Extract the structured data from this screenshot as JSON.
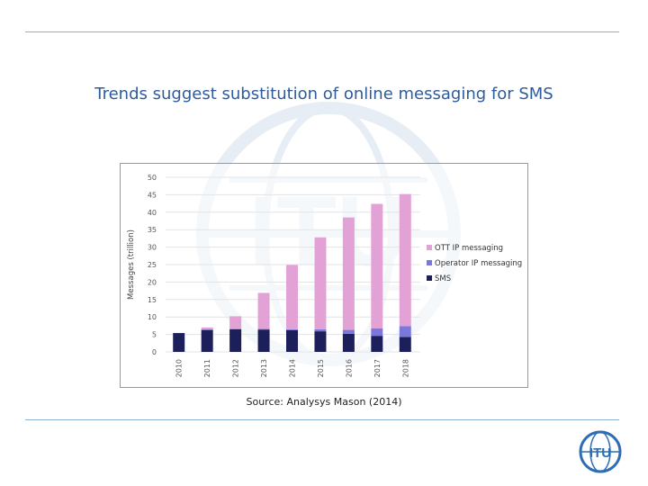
{
  "slide": {
    "title": "Trends suggest substitution of online messaging for SMS",
    "source": "Source: Analysys Mason (2014)"
  },
  "chart_data": {
    "type": "bar",
    "stacked": true,
    "categories": [
      "2010",
      "2011",
      "2012",
      "2013",
      "2014",
      "2015",
      "2016",
      "2017",
      "2018"
    ],
    "series": [
      {
        "name": "SMS",
        "color": "#1c1f5a",
        "values": [
          5.4,
          6.3,
          6.5,
          6.4,
          6.2,
          5.9,
          5.2,
          4.6,
          4.3
        ]
      },
      {
        "name": "Operator IP messaging",
        "color": "#7b78dd",
        "values": [
          0,
          0.1,
          0.1,
          0.2,
          0.3,
          0.6,
          1.1,
          2.1,
          3.1
        ]
      },
      {
        "name": "OTT IP messaging",
        "color": "#e3a2d6",
        "values": [
          0,
          0.6,
          3.6,
          10.3,
          18.4,
          26.3,
          32.2,
          35.7,
          37.8
        ]
      }
    ],
    "ylabel": "Messages (trillion)",
    "xlabel": "",
    "ylim": [
      0,
      50
    ],
    "yticks": [
      0,
      5,
      10,
      15,
      20,
      25,
      30,
      35,
      40,
      45,
      50
    ],
    "grid": true,
    "legend_position": "right",
    "legend_order": [
      "OTT IP messaging",
      "Operator IP messaging",
      "SMS"
    ]
  },
  "brand": {
    "accent": "#2e5b9a",
    "logo_text": "ITU"
  }
}
